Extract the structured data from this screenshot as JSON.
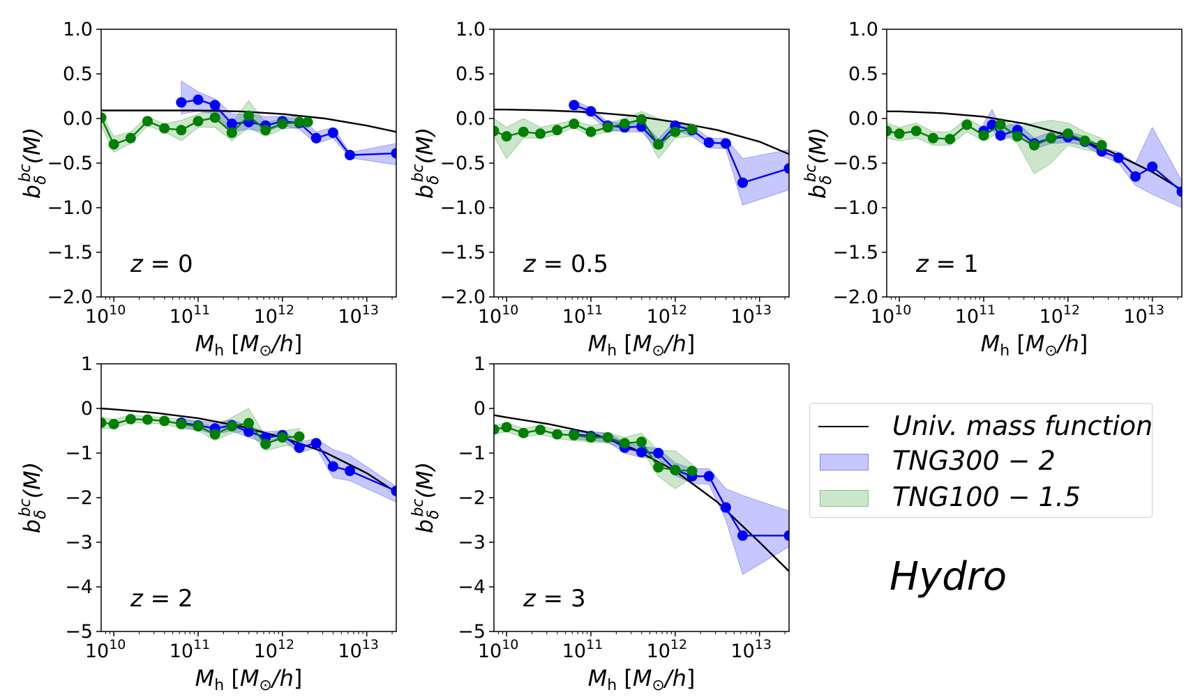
{
  "figure_label": "Hydro",
  "legend": {
    "items": [
      {
        "label": "Univ. mass function",
        "kind": "line",
        "color": "#000000"
      },
      {
        "label": "TNG300 − 2",
        "kind": "fill",
        "color": "#0000ff"
      },
      {
        "label": "TNG100 − 1.5",
        "kind": "fill",
        "color": "#008000"
      }
    ]
  },
  "colors": {
    "tng300": "#0000ff",
    "tng100": "#008000",
    "univ": "#000000"
  },
  "chart_data": [
    {
      "type": "line",
      "panel_label": "z = 0",
      "xlabel": "M_h [M_⊙/h]",
      "ylabel": "b_δ^bc(M)",
      "xscale": "log",
      "xlim_log10": [
        9.85,
        13.35
      ],
      "ylim": [
        -2.0,
        1.0
      ],
      "yticks": [
        -2.0,
        -1.5,
        -1.0,
        -0.5,
        0.0,
        0.5,
        1.0
      ],
      "ytick_labels": [
        "−2.0",
        "−1.5",
        "−1.0",
        "−0.5",
        "0.0",
        "0.5",
        "1.0"
      ],
      "xticks_log10": [
        10,
        11,
        12,
        13
      ],
      "grid": false,
      "univ_curve": {
        "name": "Univ. mass function",
        "log10M": [
          9.85,
          10,
          10.5,
          11,
          11.5,
          12,
          12.5,
          13,
          13.35
        ],
        "b": [
          0.09,
          0.09,
          0.09,
          0.09,
          0.08,
          0.05,
          0.0,
          -0.08,
          -0.15
        ]
      },
      "series": [
        {
          "name": "TNG300 − 2",
          "log10M": [
            10.8,
            11.0,
            11.2,
            11.4,
            11.6,
            11.8,
            12.0,
            12.2,
            12.4,
            12.6,
            12.8,
            13.35
          ],
          "b": [
            0.18,
            0.21,
            0.15,
            -0.06,
            -0.04,
            -0.08,
            -0.03,
            -0.05,
            -0.22,
            -0.16,
            -0.41,
            -0.39
          ],
          "band_lo": [
            0.05,
            0.08,
            0.05,
            -0.15,
            -0.12,
            -0.15,
            -0.08,
            -0.12,
            -0.28,
            -0.22,
            -0.44,
            -0.52
          ],
          "band_hi": [
            0.42,
            0.3,
            0.22,
            0.05,
            0.05,
            0.02,
            0.02,
            0.02,
            -0.15,
            -0.1,
            -0.38,
            -0.28
          ]
        },
        {
          "name": "TNG100 − 1.5",
          "log10M": [
            9.85,
            10.0,
            10.2,
            10.4,
            10.6,
            10.8,
            11.0,
            11.2,
            11.4,
            11.6,
            11.8,
            12.0,
            12.2,
            12.3
          ],
          "b": [
            0.01,
            -0.29,
            -0.22,
            -0.03,
            -0.11,
            -0.13,
            -0.03,
            0.01,
            -0.16,
            0.03,
            -0.13,
            -0.06,
            -0.04,
            -0.04
          ],
          "band_lo": [
            -0.08,
            -0.38,
            -0.28,
            -0.08,
            -0.15,
            -0.25,
            -0.1,
            -0.1,
            -0.25,
            -0.1,
            -0.2,
            -0.12,
            -0.1,
            -0.1
          ],
          "band_hi": [
            0.06,
            -0.2,
            -0.15,
            0.02,
            -0.06,
            -0.02,
            0.05,
            0.12,
            -0.05,
            0.2,
            -0.05,
            0.0,
            0.0,
            0.0
          ]
        }
      ]
    },
    {
      "type": "line",
      "panel_label": "z = 0.5",
      "xlabel": "M_h [M_⊙/h]",
      "ylabel": "b_δ^bc(M)",
      "xscale": "log",
      "xlim_log10": [
        9.85,
        13.35
      ],
      "ylim": [
        -2.0,
        1.0
      ],
      "yticks": [
        -2.0,
        -1.5,
        -1.0,
        -0.5,
        0.0,
        0.5,
        1.0
      ],
      "ytick_labels": [
        "−2.0",
        "−1.5",
        "−1.0",
        "−0.5",
        "0.0",
        "0.5",
        "1.0"
      ],
      "xticks_log10": [
        10,
        11,
        12,
        13
      ],
      "grid": false,
      "univ_curve": {
        "name": "Univ. mass function",
        "log10M": [
          9.85,
          10,
          10.5,
          11,
          11.5,
          12,
          12.5,
          13,
          13.35
        ],
        "b": [
          0.1,
          0.1,
          0.09,
          0.07,
          0.03,
          -0.04,
          -0.13,
          -0.26,
          -0.4
        ]
      },
      "series": [
        {
          "name": "TNG300 − 2",
          "log10M": [
            10.8,
            11.0,
            11.2,
            11.4,
            11.6,
            11.8,
            12.0,
            12.2,
            12.4,
            12.6,
            12.8,
            13.35
          ],
          "b": [
            0.15,
            0.08,
            -0.08,
            -0.1,
            -0.09,
            -0.29,
            -0.08,
            -0.13,
            -0.27,
            -0.28,
            -0.72,
            -0.56
          ],
          "band_lo": [
            0.1,
            0.03,
            -0.13,
            -0.15,
            -0.15,
            -0.35,
            -0.13,
            -0.2,
            -0.33,
            -0.34,
            -0.97,
            -0.8
          ],
          "band_hi": [
            0.2,
            0.12,
            -0.04,
            -0.05,
            -0.03,
            -0.23,
            -0.03,
            -0.08,
            -0.22,
            -0.22,
            -0.45,
            -0.35
          ]
        },
        {
          "name": "TNG100 − 1.5",
          "log10M": [
            9.85,
            10.0,
            10.2,
            10.4,
            10.6,
            10.8,
            11.0,
            11.2,
            11.4,
            11.6,
            11.8,
            12.0,
            12.2
          ],
          "b": [
            -0.14,
            -0.2,
            -0.15,
            -0.17,
            -0.13,
            -0.06,
            -0.15,
            -0.1,
            -0.06,
            -0.01,
            -0.29,
            -0.15,
            -0.12
          ],
          "band_lo": [
            -0.2,
            -0.45,
            -0.22,
            -0.22,
            -0.18,
            -0.1,
            -0.2,
            -0.15,
            -0.12,
            -0.08,
            -0.45,
            -0.22,
            -0.2
          ],
          "band_hi": [
            0.0,
            -0.1,
            0.0,
            -0.1,
            -0.06,
            -0.02,
            -0.08,
            -0.05,
            0.0,
            0.08,
            0.0,
            -0.08,
            -0.05
          ]
        }
      ]
    },
    {
      "type": "line",
      "panel_label": "z = 1",
      "xlabel": "M_h [M_⊙/h]",
      "ylabel": "b_δ^bc(M)",
      "xscale": "log",
      "xlim_log10": [
        9.85,
        13.35
      ],
      "ylim": [
        -2.0,
        1.0
      ],
      "yticks": [
        -2.0,
        -1.5,
        -1.0,
        -0.5,
        0.0,
        0.5,
        1.0
      ],
      "ytick_labels": [
        "−2.0",
        "−1.5",
        "−1.0",
        "−0.5",
        "0.0",
        "0.5",
        "1.0"
      ],
      "xticks_log10": [
        10,
        11,
        12,
        13
      ],
      "grid": false,
      "univ_curve": {
        "name": "Univ. mass function",
        "log10M": [
          9.85,
          10,
          10.5,
          11,
          11.5,
          12,
          12.5,
          13,
          13.35
        ],
        "b": [
          0.08,
          0.08,
          0.06,
          0.02,
          -0.06,
          -0.19,
          -0.37,
          -0.6,
          -0.8
        ]
      },
      "series": [
        {
          "name": "TNG300 − 2",
          "log10M": [
            11.0,
            11.1,
            11.2,
            11.4,
            11.6,
            11.8,
            12.0,
            12.2,
            12.4,
            12.6,
            12.8,
            13.0,
            13.35
          ],
          "b": [
            -0.14,
            -0.07,
            -0.19,
            -0.13,
            -0.28,
            -0.22,
            -0.21,
            -0.26,
            -0.37,
            -0.44,
            -0.65,
            -0.54,
            -0.82
          ],
          "band_lo": [
            -0.2,
            -0.12,
            -0.25,
            -0.18,
            -0.34,
            -0.28,
            -0.27,
            -0.3,
            -0.42,
            -0.5,
            -0.75,
            -0.85,
            -1.0
          ],
          "band_hi": [
            -0.05,
            0.1,
            -0.1,
            -0.05,
            -0.22,
            -0.15,
            -0.15,
            -0.2,
            -0.32,
            -0.38,
            -0.5,
            -0.1,
            -0.7
          ]
        },
        {
          "name": "TNG100 − 1.5",
          "log10M": [
            9.85,
            10.0,
            10.2,
            10.4,
            10.6,
            10.8,
            11.0,
            11.2,
            11.4,
            11.6,
            11.8,
            12.0,
            12.2,
            12.4
          ],
          "b": [
            -0.14,
            -0.17,
            -0.14,
            -0.22,
            -0.23,
            -0.07,
            -0.19,
            -0.07,
            -0.2,
            -0.3,
            -0.22,
            -0.17,
            -0.25,
            -0.3
          ],
          "band_lo": [
            -0.22,
            -0.25,
            -0.22,
            -0.3,
            -0.3,
            -0.15,
            -0.25,
            -0.15,
            -0.28,
            -0.62,
            -0.5,
            -0.3,
            -0.35,
            -0.38
          ],
          "band_hi": [
            -0.05,
            -0.1,
            -0.05,
            -0.15,
            -0.15,
            0.0,
            -0.1,
            0.0,
            -0.1,
            -0.05,
            -0.02,
            -0.05,
            -0.15,
            -0.22
          ]
        }
      ]
    },
    {
      "type": "line",
      "panel_label": "z = 2",
      "xlabel": "M_h [M_⊙/h]",
      "ylabel": "b_δ^bc(M)",
      "xscale": "log",
      "xlim_log10": [
        9.85,
        13.35
      ],
      "ylim": [
        -5,
        1
      ],
      "yticks": [
        -5,
        -4,
        -3,
        -2,
        -1,
        0,
        1
      ],
      "ytick_labels": [
        "−5",
        "−4",
        "−3",
        "−2",
        "−1",
        "0",
        "1"
      ],
      "xticks_log10": [
        10,
        11,
        12,
        13
      ],
      "grid": false,
      "univ_curve": {
        "name": "Univ. mass function",
        "log10M": [
          9.85,
          10,
          10.5,
          11,
          11.5,
          12,
          12.5,
          13,
          13.35
        ],
        "b": [
          0.0,
          -0.02,
          -0.1,
          -0.22,
          -0.4,
          -0.65,
          -0.98,
          -1.45,
          -1.88
        ]
      },
      "series": [
        {
          "name": "TNG300 − 2",
          "log10M": [
            10.8,
            11.0,
            11.2,
            11.4,
            11.6,
            11.8,
            12.0,
            12.2,
            12.4,
            12.6,
            12.8,
            13.35
          ],
          "b": [
            -0.32,
            -0.38,
            -0.45,
            -0.38,
            -0.52,
            -0.65,
            -0.6,
            -0.88,
            -0.78,
            -1.3,
            -1.4,
            -1.85
          ],
          "band_lo": [
            -0.42,
            -0.48,
            -0.58,
            -0.5,
            -0.65,
            -0.78,
            -0.7,
            -1.0,
            -0.88,
            -1.55,
            -1.62,
            -2.1
          ],
          "band_hi": [
            -0.22,
            -0.28,
            -0.32,
            -0.25,
            -0.4,
            -0.52,
            -0.5,
            -0.75,
            -0.68,
            -0.92,
            -1.05,
            -1.75
          ]
        },
        {
          "name": "TNG100 − 1.5",
          "log10M": [
            9.85,
            10.0,
            10.2,
            10.4,
            10.6,
            10.8,
            11.0,
            11.2,
            11.4,
            11.6,
            11.8,
            12.0,
            12.2
          ],
          "b": [
            -0.32,
            -0.35,
            -0.24,
            -0.25,
            -0.28,
            -0.35,
            -0.4,
            -0.58,
            -0.4,
            -0.33,
            -0.8,
            -0.65,
            -0.63
          ],
          "band_lo": [
            -0.45,
            -0.45,
            -0.32,
            -0.33,
            -0.35,
            -0.45,
            -0.5,
            -0.72,
            -0.55,
            -0.5,
            -0.95,
            -0.85,
            -0.8
          ],
          "band_hi": [
            -0.2,
            -0.25,
            -0.15,
            -0.18,
            -0.2,
            -0.25,
            -0.3,
            -0.42,
            -0.2,
            0.0,
            -0.62,
            -0.5,
            -0.45
          ]
        }
      ]
    },
    {
      "type": "line",
      "panel_label": "z = 3",
      "xlabel": "M_h [M_⊙/h]",
      "ylabel": "b_δ^bc(M)",
      "xscale": "log",
      "xlim_log10": [
        9.85,
        13.35
      ],
      "ylim": [
        -5,
        1
      ],
      "yticks": [
        -5,
        -4,
        -3,
        -2,
        -1,
        0,
        1
      ],
      "ytick_labels": [
        "−5",
        "−4",
        "−3",
        "−2",
        "−1",
        "0",
        "1"
      ],
      "xticks_log10": [
        10,
        11,
        12,
        13
      ],
      "grid": false,
      "univ_curve": {
        "name": "Univ. mass function",
        "log10M": [
          9.85,
          10,
          10.5,
          11,
          11.5,
          12,
          12.5,
          13,
          13.35
        ],
        "b": [
          -0.15,
          -0.2,
          -0.35,
          -0.55,
          -0.9,
          -1.4,
          -2.1,
          -3.0,
          -3.65
        ]
      },
      "series": [
        {
          "name": "TNG300 − 2",
          "log10M": [
            10.8,
            11.0,
            11.2,
            11.4,
            11.6,
            11.8,
            12.0,
            12.2,
            12.4,
            12.6,
            12.8,
            13.35
          ],
          "b": [
            -0.58,
            -0.62,
            -0.65,
            -0.88,
            -0.98,
            -1.0,
            -1.38,
            -1.52,
            -1.52,
            -2.22,
            -2.85,
            -2.85
          ],
          "band_lo": [
            -0.68,
            -0.72,
            -0.75,
            -1.0,
            -1.1,
            -1.12,
            -1.5,
            -1.68,
            -1.7,
            -2.5,
            -3.72,
            -3.1
          ],
          "band_hi": [
            -0.5,
            -0.52,
            -0.55,
            -0.75,
            -0.85,
            -0.9,
            -1.22,
            -1.35,
            -1.35,
            -1.8,
            -1.95,
            -2.3
          ]
        },
        {
          "name": "TNG100 − 1.5",
          "log10M": [
            9.85,
            10.0,
            10.2,
            10.4,
            10.6,
            10.8,
            11.0,
            11.2,
            11.4,
            11.6,
            11.8,
            12.0,
            12.2
          ],
          "b": [
            -0.47,
            -0.42,
            -0.55,
            -0.48,
            -0.58,
            -0.6,
            -0.65,
            -0.65,
            -0.78,
            -0.75,
            -1.32,
            -1.38,
            -1.4
          ],
          "band_lo": [
            -0.58,
            -0.52,
            -0.65,
            -0.58,
            -0.68,
            -0.72,
            -0.75,
            -0.78,
            -0.9,
            -0.92,
            -1.52,
            -1.8,
            -1.55
          ],
          "band_hi": [
            -0.38,
            -0.32,
            -0.45,
            -0.38,
            -0.48,
            -0.5,
            -0.55,
            -0.55,
            -0.65,
            -0.55,
            -0.95,
            -0.95,
            -1.25
          ]
        }
      ]
    }
  ]
}
